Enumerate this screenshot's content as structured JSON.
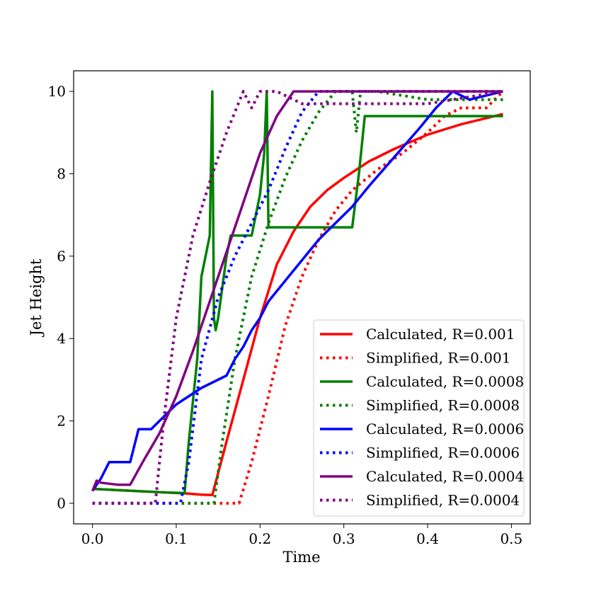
{
  "chart_data": {
    "type": "line",
    "xlabel": "Time",
    "ylabel": "Jet Height",
    "xlim": [
      -0.0225,
      0.5225
    ],
    "ylim": [
      -0.5,
      10.5
    ],
    "xticks": [
      0.0,
      0.1,
      0.2,
      0.3,
      0.4,
      0.5
    ],
    "xtick_labels": [
      "0.0",
      "0.1",
      "0.2",
      "0.3",
      "0.4",
      "0.5"
    ],
    "yticks": [
      0,
      2,
      4,
      6,
      8,
      10
    ],
    "ytick_labels": [
      "0",
      "2",
      "4",
      "6",
      "8",
      "10"
    ],
    "grid": false,
    "legend_position": "lower-right",
    "series": [
      {
        "name": "Calculated, R=0.001",
        "color": "#ff0000",
        "style": "solid",
        "x": [
          0.0,
          0.02,
          0.05,
          0.08,
          0.11,
          0.13,
          0.143,
          0.16,
          0.18,
          0.2,
          0.22,
          0.24,
          0.26,
          0.28,
          0.3,
          0.33,
          0.36,
          0.4,
          0.44,
          0.49
        ],
        "y": [
          0.35,
          0.33,
          0.3,
          0.27,
          0.24,
          0.21,
          0.2,
          1.5,
          3.0,
          4.5,
          5.8,
          6.6,
          7.2,
          7.6,
          7.9,
          8.3,
          8.6,
          8.95,
          9.2,
          9.45
        ]
      },
      {
        "name": "Simplified, R=0.001",
        "color": "#ff0000",
        "style": "dotted",
        "x": [
          0.0,
          0.1,
          0.175,
          0.19,
          0.21,
          0.23,
          0.25,
          0.27,
          0.29,
          0.31,
          0.34,
          0.37,
          0.4,
          0.42,
          0.44,
          0.47,
          0.49
        ],
        "y": [
          0.0,
          0.0,
          0.0,
          1.0,
          2.6,
          4.3,
          5.5,
          6.4,
          7.1,
          7.6,
          8.1,
          8.5,
          9.0,
          9.4,
          9.6,
          9.6,
          10.0
        ]
      },
      {
        "name": "Calculated, R=0.0008",
        "color": "#008000",
        "style": "solid",
        "x": [
          0.0,
          0.05,
          0.09,
          0.11,
          0.115,
          0.125,
          0.13,
          0.135,
          0.14,
          0.143,
          0.145,
          0.147,
          0.15,
          0.16,
          0.165,
          0.17,
          0.19,
          0.2,
          0.205,
          0.208,
          0.21,
          0.24,
          0.27,
          0.3,
          0.31,
          0.318,
          0.325,
          0.49
        ],
        "y": [
          0.35,
          0.3,
          0.26,
          0.25,
          1.5,
          3.5,
          5.5,
          6.0,
          6.5,
          10.0,
          4.5,
          4.2,
          4.5,
          6.0,
          6.5,
          6.5,
          6.5,
          7.5,
          8.5,
          10.0,
          6.7,
          6.7,
          6.7,
          6.7,
          6.7,
          8.0,
          9.4,
          9.4
        ]
      },
      {
        "name": "Simplified, R=0.0008",
        "color": "#008000",
        "style": "dotted",
        "x": [
          0.0,
          0.08,
          0.145,
          0.155,
          0.17,
          0.19,
          0.21,
          0.23,
          0.25,
          0.27,
          0.29,
          0.31,
          0.315,
          0.32,
          0.34,
          0.4,
          0.49
        ],
        "y": [
          0.0,
          0.0,
          0.0,
          1.5,
          3.5,
          5.5,
          6.8,
          7.9,
          8.8,
          9.5,
          10.0,
          10.0,
          9.0,
          10.0,
          10.0,
          9.8,
          9.8
        ]
      },
      {
        "name": "Calculated, R=0.0006",
        "color": "#0000ff",
        "style": "solid",
        "x": [
          0.0,
          0.01,
          0.02,
          0.045,
          0.055,
          0.07,
          0.08,
          0.1,
          0.13,
          0.16,
          0.17,
          0.18,
          0.19,
          0.2,
          0.21,
          0.23,
          0.25,
          0.27,
          0.29,
          0.31,
          0.33,
          0.36,
          0.39,
          0.41,
          0.43,
          0.45,
          0.49
        ],
        "y": [
          0.3,
          0.6,
          1.0,
          1.0,
          1.8,
          1.8,
          2.0,
          2.4,
          2.8,
          3.1,
          3.5,
          3.8,
          4.2,
          4.5,
          4.9,
          5.4,
          5.9,
          6.4,
          6.8,
          7.2,
          7.7,
          8.4,
          9.1,
          9.6,
          10.0,
          9.8,
          10.0
        ]
      },
      {
        "name": "Simplified, R=0.0006",
        "color": "#0000ff",
        "style": "dotted",
        "x": [
          0.0,
          0.05,
          0.105,
          0.115,
          0.13,
          0.15,
          0.17,
          0.19,
          0.21,
          0.23,
          0.25,
          0.27,
          0.3,
          0.35,
          0.4,
          0.45,
          0.49
        ],
        "y": [
          0.0,
          0.0,
          0.0,
          1.0,
          3.5,
          5.0,
          6.0,
          6.8,
          7.6,
          8.6,
          9.5,
          10.0,
          10.0,
          10.0,
          10.0,
          10.0,
          10.0
        ]
      },
      {
        "name": "Calculated, R=0.0004",
        "color": "#800080",
        "style": "solid",
        "x": [
          0.0,
          0.005,
          0.01,
          0.03,
          0.045,
          0.06,
          0.08,
          0.1,
          0.12,
          0.14,
          0.16,
          0.18,
          0.2,
          0.22,
          0.24,
          0.3,
          0.4,
          0.49
        ],
        "y": [
          0.3,
          0.55,
          0.5,
          0.45,
          0.45,
          1.0,
          1.7,
          2.6,
          3.7,
          4.9,
          6.1,
          7.3,
          8.5,
          9.4,
          10.0,
          10.0,
          10.0,
          10.0
        ]
      },
      {
        "name": "Simplified, R=0.0004",
        "color": "#800080",
        "style": "dotted",
        "x": [
          0.0,
          0.05,
          0.075,
          0.085,
          0.1,
          0.12,
          0.14,
          0.16,
          0.18,
          0.19,
          0.2,
          0.22,
          0.25,
          0.3,
          0.4,
          0.49
        ],
        "y": [
          0.0,
          0.0,
          0.0,
          2.0,
          4.5,
          6.5,
          7.8,
          9.0,
          10.0,
          9.6,
          10.0,
          10.0,
          9.7,
          9.7,
          9.7,
          10.0
        ]
      }
    ]
  }
}
